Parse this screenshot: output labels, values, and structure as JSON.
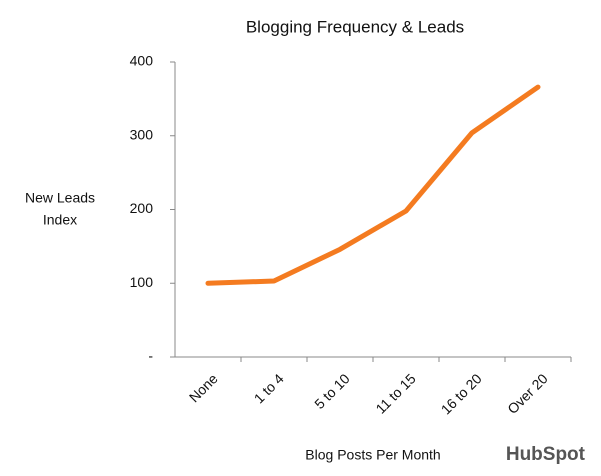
{
  "chart_data": {
    "type": "line",
    "title": "Blogging Frequency  & Leads",
    "ylabel": [
      "New Leads",
      "Index"
    ],
    "xlabel": "Blog Posts Per Month",
    "logo": "HubSpot",
    "categories": [
      "None",
      "1 to 4",
      "5 to 10",
      "11 to 15",
      "16 to 20",
      "Over 20"
    ],
    "series": [
      {
        "color": "#f47b20",
        "values": [
          100,
          103,
          146,
          198,
          304,
          366
        ]
      }
    ],
    "ylim": [
      0,
      400
    ],
    "yticks": [
      {
        "value": 0,
        "label": "-"
      },
      100,
      200,
      300,
      400
    ],
    "grid": false
  }
}
